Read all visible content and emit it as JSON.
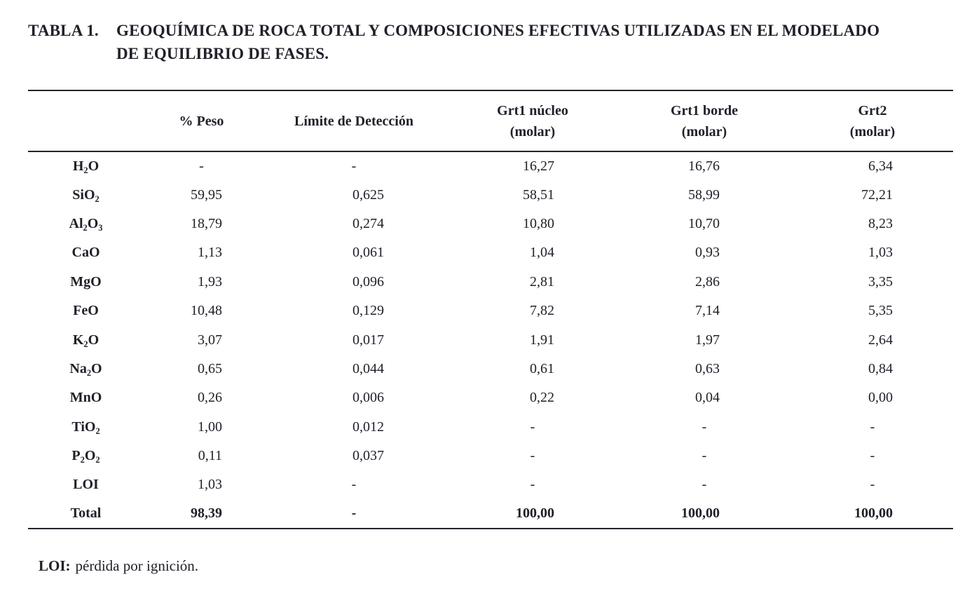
{
  "colors": {
    "background": "#ffffff",
    "text": "#20202a",
    "rule": "#23232b"
  },
  "title": {
    "label": "TABLA 1.",
    "text": "GEOQUÍMICA DE ROCA TOTAL Y COMPOSICIONES EFECTIVAS UTILIZADAS EN EL MODELADO\nDE EQUILIBRIO DE FASES."
  },
  "table": {
    "columns": [
      "",
      "% Peso",
      "Límite de Detección",
      "Grt1 núcleo\n(molar)",
      "Grt1 borde\n(molar)",
      "Grt2\n(molar)"
    ],
    "rows": [
      {
        "formula": "H_2O",
        "values": [
          "-",
          "-",
          "16,27",
          "16,76",
          "6,34"
        ],
        "bold": false
      },
      {
        "formula": "SiO_2",
        "values": [
          "59,95",
          "0,625",
          "58,51",
          "58,99",
          "72,21"
        ],
        "bold": false
      },
      {
        "formula": "Al_2O_3",
        "values": [
          "18,79",
          "0,274",
          "10,80",
          "10,70",
          "8,23"
        ],
        "bold": false
      },
      {
        "formula": "CaO",
        "values": [
          "1,13",
          "0,061",
          "1,04",
          "0,93",
          "1,03"
        ],
        "bold": false
      },
      {
        "formula": "MgO",
        "values": [
          "1,93",
          "0,096",
          "2,81",
          "2,86",
          "3,35"
        ],
        "bold": false
      },
      {
        "formula": "FeO",
        "values": [
          "10,48",
          "0,129",
          "7,82",
          "7,14",
          "5,35"
        ],
        "bold": false
      },
      {
        "formula": "K_2O",
        "values": [
          "3,07",
          "0,017",
          "1,91",
          "1,97",
          "2,64"
        ],
        "bold": false
      },
      {
        "formula": "Na_2O",
        "values": [
          "0,65",
          "0,044",
          "0,61",
          "0,63",
          "0,84"
        ],
        "bold": false
      },
      {
        "formula": "MnO",
        "values": [
          "0,26",
          "0,006",
          "0,22",
          "0,04",
          "0,00"
        ],
        "bold": false
      },
      {
        "formula": "TiO_2",
        "values": [
          "1,00",
          "0,012",
          "-",
          "-",
          "-"
        ],
        "bold": false
      },
      {
        "formula": "P_2O_2",
        "values": [
          "0,11",
          "0,037",
          "-",
          "-",
          "-"
        ],
        "bold": false
      },
      {
        "formula": "LOI",
        "values": [
          "1,03",
          "-",
          "-",
          "-",
          "-"
        ],
        "bold": false
      },
      {
        "formula": "Total",
        "values": [
          "98,39",
          "-",
          "100,00",
          "100,00",
          "100,00"
        ],
        "bold": true
      }
    ]
  },
  "footnote": {
    "label": "LOI:",
    "text": "pérdida por ignición."
  }
}
